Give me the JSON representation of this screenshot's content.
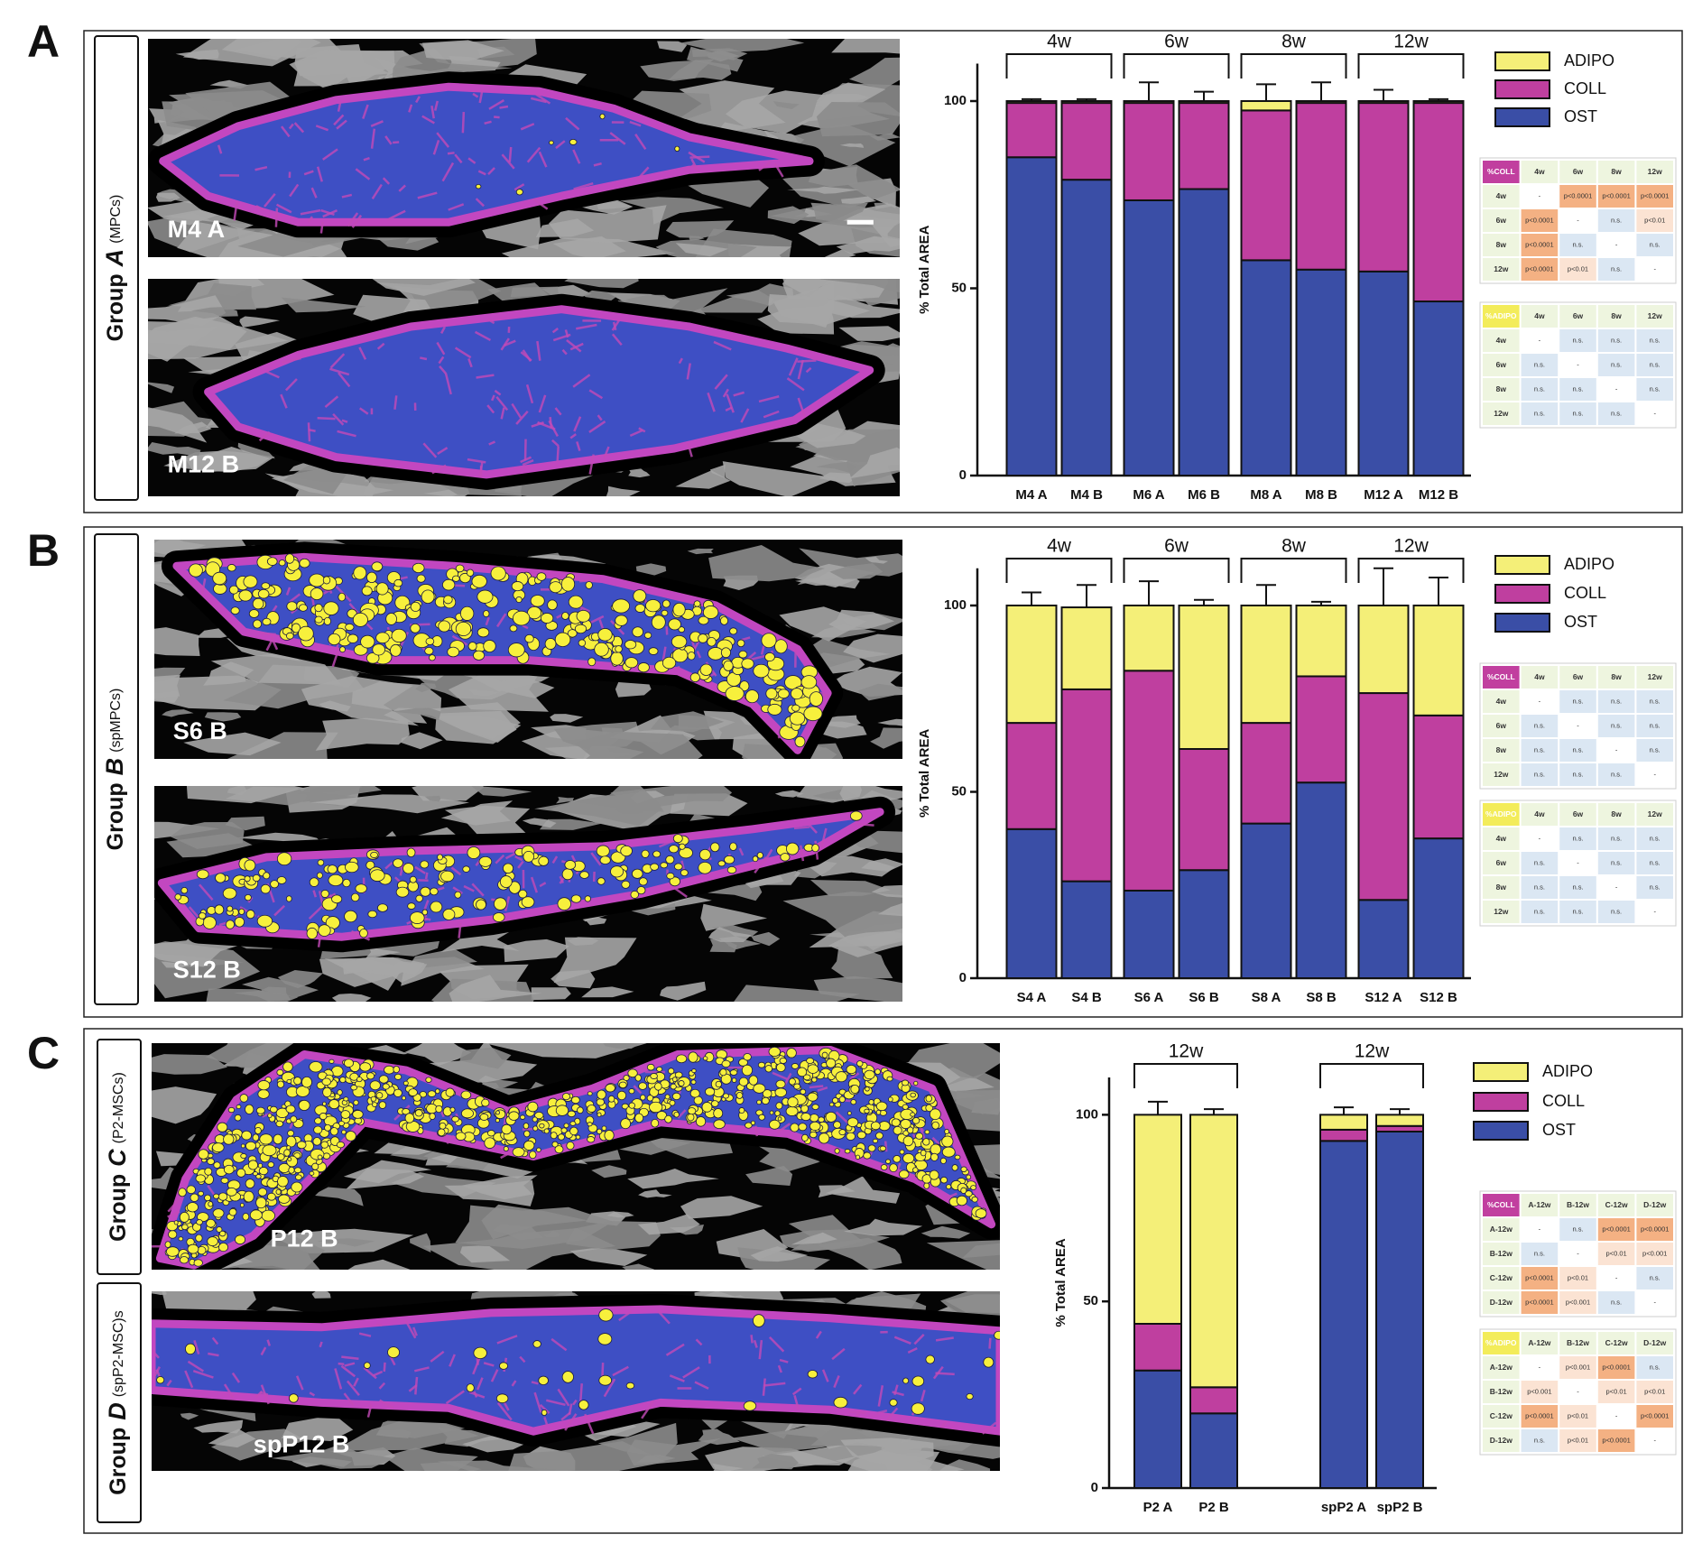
{
  "panels": [
    {
      "letter": "A",
      "groups": [
        {
          "word": "Group",
          "letter": "A",
          "cells": "(MPCs)"
        }
      ],
      "images": [
        "M4 A",
        "M12 B"
      ],
      "tables": [
        {
          "color": "#c13f9f",
          "rows": [
            [
              "%COLL",
              "4w",
              "6w",
              "8w",
              "12w"
            ],
            [
              "4w",
              "-",
              "p<0.0001",
              "p<0.0001",
              "p<0.0001"
            ],
            [
              "6w",
              "p<0.0001",
              "-",
              "n.s.",
              "p<0.01"
            ],
            [
              "8w",
              "p<0.0001",
              "n.s.",
              "-",
              "n.s."
            ],
            [
              "12w",
              "p<0.0001",
              "p<0.01",
              "n.s.",
              "-"
            ]
          ]
        },
        {
          "color": "#f3ec5a",
          "rows": [
            [
              "%ADIPO",
              "4w",
              "6w",
              "8w",
              "12w"
            ],
            [
              "4w",
              "-",
              "n.s.",
              "n.s.",
              "n.s."
            ],
            [
              "6w",
              "n.s.",
              "-",
              "n.s.",
              "n.s."
            ],
            [
              "8w",
              "n.s.",
              "n.s.",
              "-",
              "n.s."
            ],
            [
              "12w",
              "n.s.",
              "n.s.",
              "n.s.",
              "-"
            ]
          ]
        }
      ]
    },
    {
      "letter": "B",
      "groups": [
        {
          "word": "Group",
          "letter": "B",
          "cells": "(spMPCs)"
        }
      ],
      "images": [
        "S6 B",
        "S12 B"
      ],
      "tables": [
        {
          "color": "#c13f9f",
          "rows": [
            [
              "%COLL",
              "4w",
              "6w",
              "8w",
              "12w"
            ],
            [
              "4w",
              "-",
              "n.s.",
              "n.s.",
              "n.s."
            ],
            [
              "6w",
              "n.s.",
              "-",
              "n.s.",
              "n.s."
            ],
            [
              "8w",
              "n.s.",
              "n.s.",
              "-",
              "n.s."
            ],
            [
              "12w",
              "n.s.",
              "n.s.",
              "n.s.",
              "-"
            ]
          ]
        },
        {
          "color": "#f3ec5a",
          "rows": [
            [
              "%ADIPO",
              "4w",
              "6w",
              "8w",
              "12w"
            ],
            [
              "4w",
              "-",
              "n.s.",
              "n.s.",
              "n.s."
            ],
            [
              "6w",
              "n.s.",
              "-",
              "n.s.",
              "n.s."
            ],
            [
              "8w",
              "n.s.",
              "n.s.",
              "-",
              "n.s."
            ],
            [
              "12w",
              "n.s.",
              "n.s.",
              "n.s.",
              "-"
            ]
          ]
        }
      ]
    },
    {
      "letter": "C",
      "groups": [
        {
          "word": "Group",
          "letter": "C",
          "cells": "(P2-MSCs)"
        },
        {
          "word": "Group",
          "letter": "D",
          "cells": "(spP2-MSC)s"
        }
      ],
      "images": [
        "P12 B",
        "spP12 B"
      ],
      "tables": [
        {
          "color": "#c13f9f",
          "rows": [
            [
              "%COLL",
              "A-12w",
              "B-12w",
              "C-12w",
              "D-12w"
            ],
            [
              "A-12w",
              "-",
              "n.s.",
              "p<0.0001",
              "p<0.0001"
            ],
            [
              "B-12w",
              "n.s.",
              "-",
              "p<0.01",
              "p<0.001"
            ],
            [
              "C-12w",
              "p<0.0001",
              "p<0.01",
              "-",
              "n.s."
            ],
            [
              "D-12w",
              "p<0.0001",
              "p<0.001",
              "n.s.",
              "-"
            ]
          ]
        },
        {
          "color": "#f3ec5a",
          "rows": [
            [
              "%ADIPO",
              "A-12w",
              "B-12w",
              "C-12w",
              "D-12w"
            ],
            [
              "A-12w",
              "-",
              "p<0.001",
              "p<0.0001",
              "n.s."
            ],
            [
              "B-12w",
              "p<0.001",
              "-",
              "p<0.01",
              "p<0.01"
            ],
            [
              "C-12w",
              "p<0.0001",
              "p<0.01",
              "-",
              "p<0.0001"
            ],
            [
              "D-12w",
              "n.s.",
              "p<0.01",
              "p<0.0001",
              "-"
            ]
          ]
        }
      ]
    }
  ],
  "chart_data": [
    {
      "type": "bar",
      "stacked": true,
      "y_label": "% Total AREA",
      "brackets": [
        "4w",
        "6w",
        "8w",
        "12w"
      ],
      "categories": [
        "M4 A",
        "M4 B",
        "M6 A",
        "M6 B",
        "M8 A",
        "M8 B",
        "M12 A",
        "M12 B"
      ],
      "series": [
        {
          "name": "OST",
          "color": "#3a4ea6",
          "values": [
            85,
            79,
            73.5,
            76.5,
            57.5,
            55,
            54.5,
            46.5
          ],
          "errors": [
            1,
            1.5,
            5,
            2.5,
            7,
            5.5,
            3,
            1
          ]
        },
        {
          "name": "COLL",
          "color": "#bf3f9f",
          "values": [
            14.5,
            20.5,
            26,
            23,
            40,
            44.5,
            45,
            53
          ],
          "errors": [
            0.5,
            0.5,
            0.5,
            0.5,
            0.5,
            0.5,
            0.5,
            0.5
          ]
        },
        {
          "name": "ADIPO",
          "color": "#f4ef78",
          "values": [
            0.5,
            0.5,
            0.5,
            0.5,
            2.5,
            0.5,
            0.5,
            0.5
          ],
          "errors": [
            0.5,
            0.5,
            5,
            2.5,
            4.5,
            5,
            3,
            0.5
          ]
        }
      ],
      "ylim": [
        0,
        110
      ],
      "yticks": [
        0,
        50,
        100
      ]
    },
    {
      "type": "bar",
      "stacked": true,
      "y_label": "% Total AREA",
      "brackets": [
        "4w",
        "6w",
        "8w",
        "12w"
      ],
      "categories": [
        "S4 A",
        "S4 B",
        "S6 A",
        "S6 B",
        "S8 A",
        "S8 B",
        "S12 A",
        "S12 B"
      ],
      "series": [
        {
          "name": "OST",
          "color": "#3a4ea6",
          "values": [
            40,
            26,
            23.5,
            29,
            41.5,
            52.5,
            21,
            37.5
          ],
          "errors": [
            1,
            6,
            9.5,
            2.5,
            7,
            2,
            6.5,
            6.5
          ]
        },
        {
          "name": "COLL",
          "color": "#bf3f9f",
          "values": [
            28.5,
            51.5,
            59,
            32.5,
            27,
            28.5,
            55.5,
            33
          ],
          "errors": [
            4,
            3.5,
            3.5,
            1,
            6,
            1,
            5.5,
            3
          ]
        },
        {
          "name": "ADIPO",
          "color": "#f4ef78",
          "values": [
            31.5,
            22,
            17.5,
            38.5,
            31.5,
            19,
            23.5,
            29.5
          ],
          "errors": [
            3.5,
            6,
            6.5,
            1.5,
            5.5,
            1,
            10,
            7.5
          ]
        }
      ],
      "ylim": [
        0,
        110
      ],
      "yticks": [
        0,
        50,
        100
      ]
    },
    {
      "type": "bar",
      "stacked": true,
      "y_label": "% Total AREA",
      "brackets": [
        "12w",
        "12w"
      ],
      "categories": [
        "P2 A",
        "P2 B",
        "spP2 A",
        "spP2 B"
      ],
      "series": [
        {
          "name": "OST",
          "color": "#3a4ea6",
          "values": [
            31.5,
            20,
            93,
            95.5
          ],
          "errors": [
            1,
            2.5,
            1,
            1
          ]
        },
        {
          "name": "COLL",
          "color": "#bf3f9f",
          "values": [
            12.5,
            7,
            3,
            1.5
          ],
          "errors": [
            4.5,
            1.5,
            1,
            1
          ]
        },
        {
          "name": "ADIPO",
          "color": "#f4ef78",
          "values": [
            56,
            73,
            4,
            3
          ],
          "errors": [
            3.5,
            1.5,
            2,
            1.5
          ]
        }
      ],
      "ylim": [
        0,
        110
      ],
      "yticks": [
        0,
        50,
        100
      ]
    }
  ]
}
